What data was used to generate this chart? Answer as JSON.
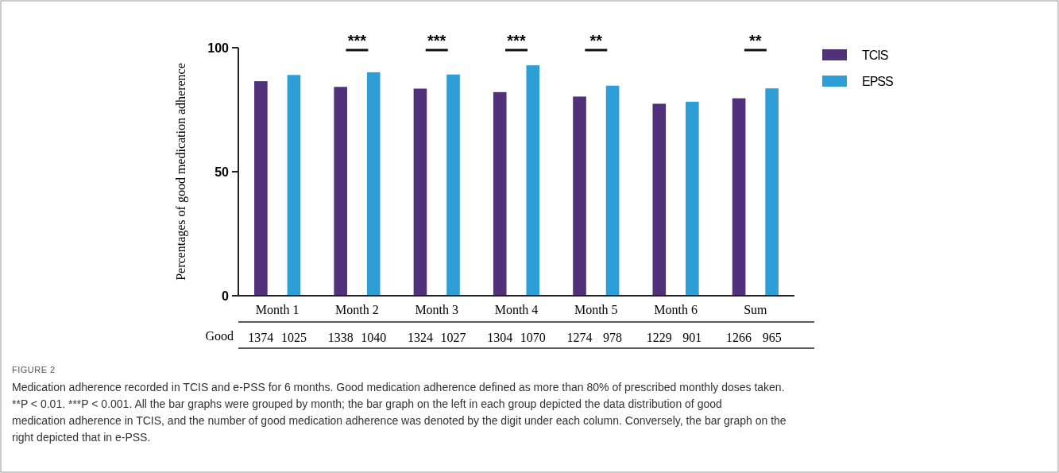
{
  "chart_data": {
    "type": "bar",
    "ylabel": "Percentages of good medication adherence",
    "categories": [
      "Month 1",
      "Month 2",
      "Month 3",
      "Month 4",
      "Month 5",
      "Month 6",
      "Sum"
    ],
    "series": [
      {
        "name": "TCIS",
        "color": "#51317a",
        "values": [
          86.5,
          84.2,
          83.5,
          82.1,
          80.3,
          77.4,
          79.6
        ]
      },
      {
        "name": "EPSS",
        "color": "#2e9fd6",
        "values": [
          89.0,
          90.1,
          89.2,
          92.9,
          84.7,
          78.2,
          83.6
        ]
      }
    ],
    "ylim": [
      0,
      100
    ],
    "yticks": [
      0,
      50,
      100
    ],
    "grid": false,
    "legend": "top right",
    "annotations": [
      "FIGURE 2",
      "Medication adherence recorded in TCIS and e-PSS for 6 months. Good medication adherence defined as more than 80% of prescribed monthly doses taken. **P < 0.01. ***P < 0.001. All the bar graphs were grouped by month; the bar graph on the left in each group depicted the data distribution of good medication adherence in TCIS, and the number of good medication adherence was denoted by the digit under each column. Conversely, the bar graph on the right depicted that in e-PSS.",
      "Good",
      "1374",
      "1025",
      "1338",
      "1040",
      "1324",
      "1027",
      "1304",
      "1070",
      "1274",
      "978",
      "1229",
      "901",
      "1266",
      "965",
      "***",
      "***",
      "***",
      "**",
      "**"
    ]
  }
}
